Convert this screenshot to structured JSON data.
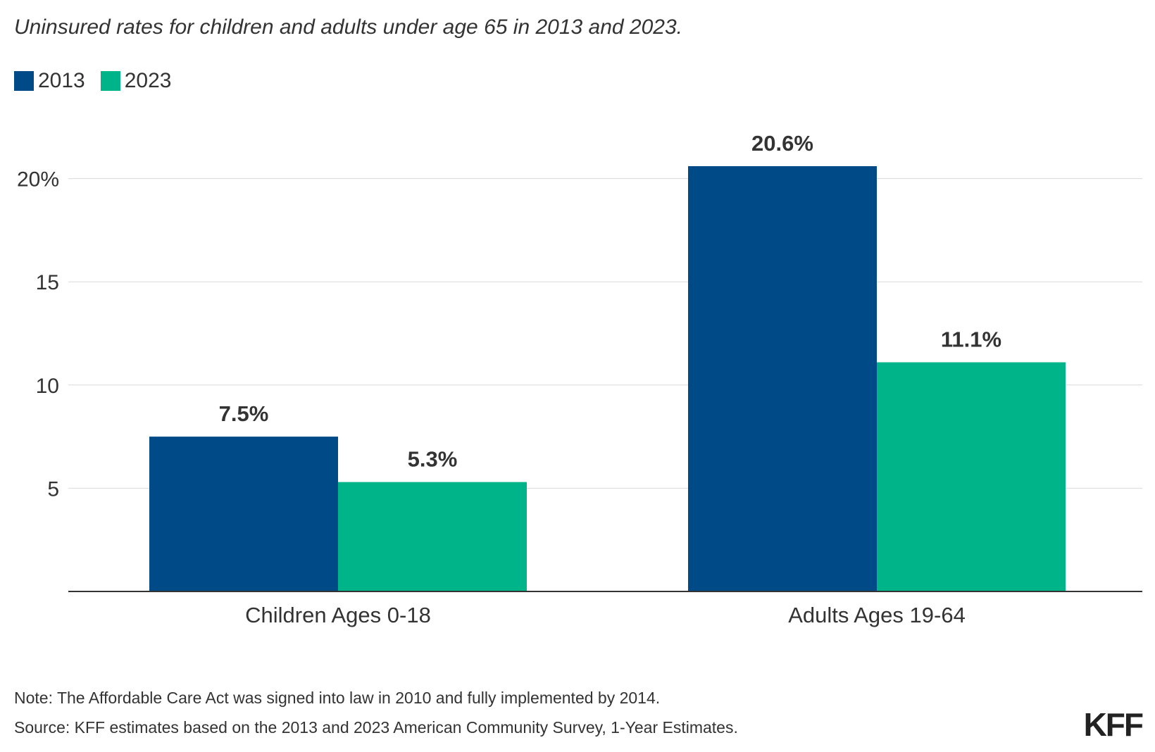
{
  "subtitle": "Uninsured rates for children and adults under age 65 in 2013 and 2023.",
  "legend": [
    {
      "label": "2013",
      "color": "#004A87"
    },
    {
      "label": "2023",
      "color": "#00B48A"
    }
  ],
  "chart_data": {
    "type": "bar",
    "categories": [
      "Children Ages 0-18",
      "Adults Ages 19-64"
    ],
    "series": [
      {
        "name": "2013",
        "values": [
          7.5,
          20.6
        ],
        "labels": [
          "7.5%",
          "20.6%"
        ],
        "color": "#004A87"
      },
      {
        "name": "2023",
        "values": [
          5.3,
          11.1
        ],
        "labels": [
          "5.3%",
          "11.1%"
        ],
        "color": "#00B48A"
      }
    ],
    "ylim": [
      0,
      20.6
    ],
    "yticks": [
      5,
      10,
      15,
      20
    ],
    "ytick_labels": [
      "5",
      "10",
      "15",
      "20%"
    ],
    "grid": true,
    "legend_position": "top-left"
  },
  "footer": {
    "note": "Note: The Affordable Care Act was signed into law in 2010 and fully implemented by 2014.",
    "source": "Source: KFF estimates based on the 2013 and 2023 American Community Survey, 1-Year Estimates."
  },
  "logo": "KFF"
}
